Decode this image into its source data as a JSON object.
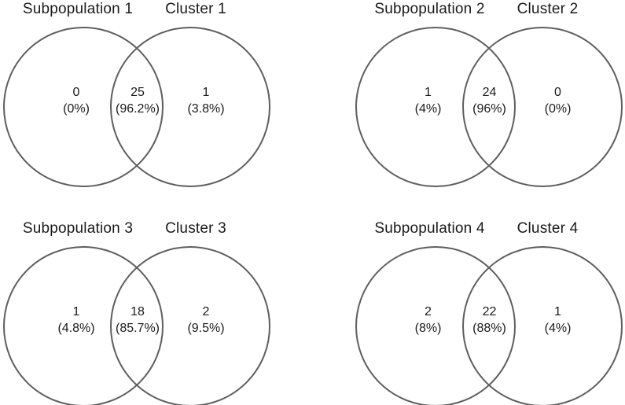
{
  "figure_type": "venn-diagram-grid",
  "colors": {
    "stroke": "#5e5e5e",
    "text-color": "#1a1a1a",
    "bg": "#ffffff"
  },
  "diagrams": [
    {
      "left_title": "Subpopulation 1",
      "right_title": "Cluster 1",
      "left_only": {
        "count": "0",
        "percent": "(0%)"
      },
      "intersection": {
        "count": "25",
        "percent": "(96.2%)"
      },
      "right_only": {
        "count": "1",
        "percent": "(3.8%)"
      }
    },
    {
      "left_title": "Subpopulation 2",
      "right_title": "Cluster 2",
      "left_only": {
        "count": "1",
        "percent": "(4%)"
      },
      "intersection": {
        "count": "24",
        "percent": "(96%)"
      },
      "right_only": {
        "count": "0",
        "percent": "(0%)"
      }
    },
    {
      "left_title": "Subpopulation 3",
      "right_title": "Cluster 3",
      "left_only": {
        "count": "1",
        "percent": "(4.8%)"
      },
      "intersection": {
        "count": "18",
        "percent": "(85.7%)"
      },
      "right_only": {
        "count": "2",
        "percent": "(9.5%)"
      }
    },
    {
      "left_title": "Subpopulation 4",
      "right_title": "Cluster 4",
      "left_only": {
        "count": "2",
        "percent": "(8%)"
      },
      "intersection": {
        "count": "22",
        "percent": "(88%)"
      },
      "right_only": {
        "count": "1",
        "percent": "(4%)"
      }
    }
  ]
}
